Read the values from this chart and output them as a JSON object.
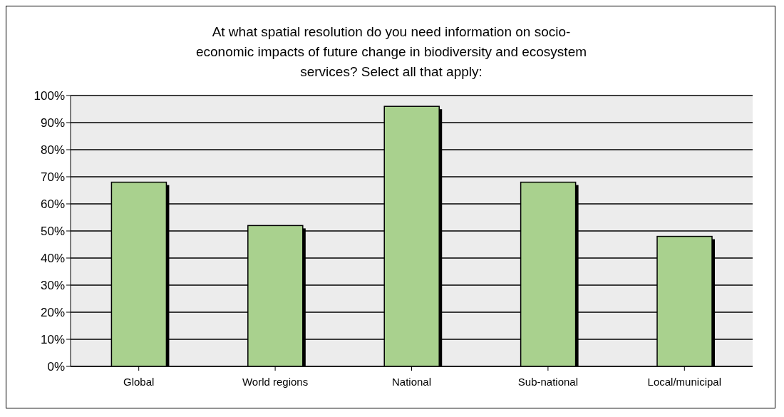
{
  "chart_data": {
    "type": "bar",
    "title": "At what spatial resolution do you need information on socio-economic impacts of future change in biodiversity and ecosystem services? Select all that apply:",
    "categories": [
      "Global",
      "World regions",
      "National",
      "Sub-national",
      "Local/municipal"
    ],
    "values": [
      68,
      52,
      96,
      68,
      48
    ],
    "color": "#a9d18e",
    "ylim": [
      0,
      100
    ],
    "yticks": [
      {
        "value": 0,
        "label": "0%"
      },
      {
        "value": 10,
        "label": "10%"
      },
      {
        "value": 20,
        "label": "20%"
      },
      {
        "value": 30,
        "label": "30%"
      },
      {
        "value": 40,
        "label": "40%"
      },
      {
        "value": 50,
        "label": "50%"
      },
      {
        "value": 60,
        "label": "60%"
      },
      {
        "value": 70,
        "label": "70%"
      },
      {
        "value": 80,
        "label": "80%"
      },
      {
        "value": 90,
        "label": "90%"
      },
      {
        "value": 100,
        "label": "100%"
      }
    ],
    "grid": "y"
  }
}
